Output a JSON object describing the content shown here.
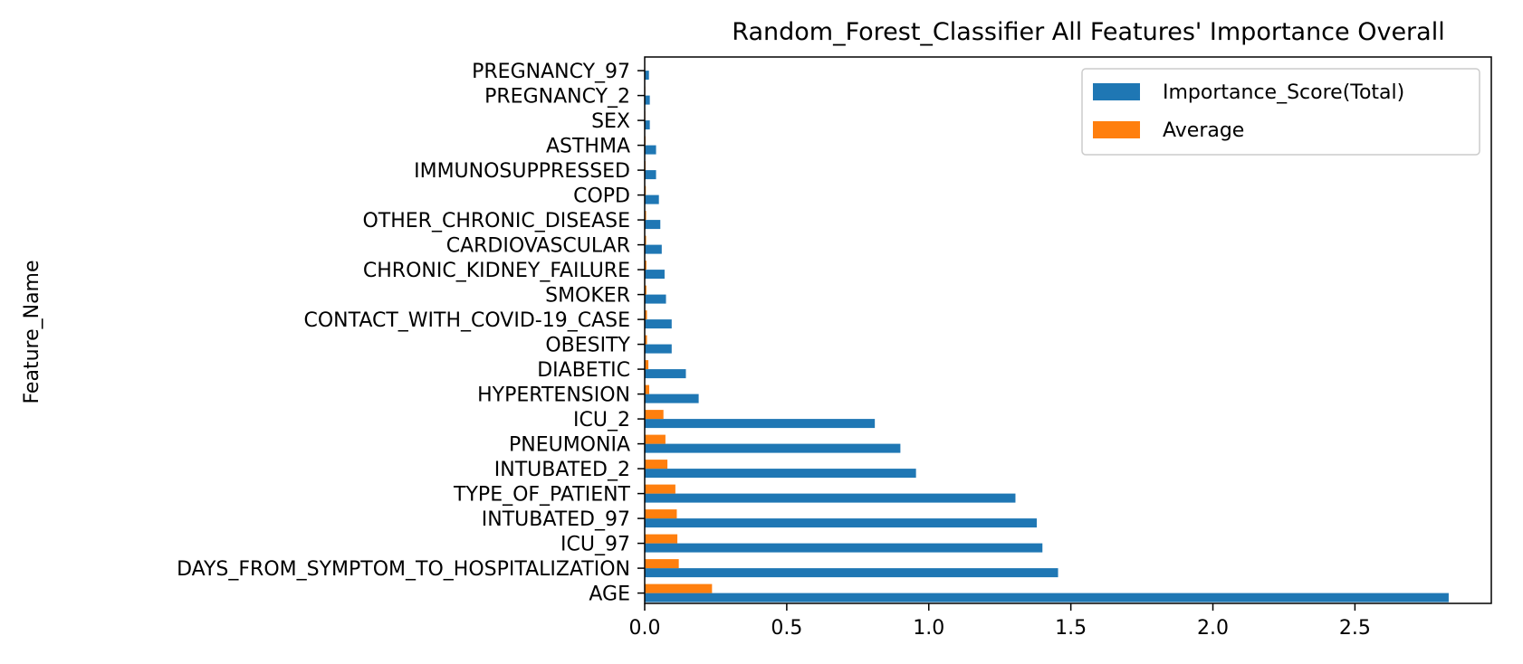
{
  "chart_data": {
    "type": "bar",
    "orientation": "horizontal",
    "title": "Random_Forest_Classifier All Features' Importance Overall",
    "xlabel": "",
    "ylabel": "Feature_Name",
    "xlim": [
      0,
      2.98
    ],
    "xticks": [
      "0.0",
      "0.5",
      "1.0",
      "1.5",
      "2.0",
      "2.5"
    ],
    "xtick_values": [
      0,
      0.5,
      1.0,
      1.5,
      2.0,
      2.5
    ],
    "grid": false,
    "legend_position": "top-right",
    "categories": [
      "AGE",
      "DAYS_FROM_SYMPTOM_TO_HOSPITALIZATION",
      "ICU_97",
      "INTUBATED_97",
      "TYPE_OF_PATIENT",
      "INTUBATED_2",
      "PNEUMONIA",
      "ICU_2",
      "HYPERTENSION",
      "DIABETIC",
      "OBESITY",
      "CONTACT_WITH_COVID-19_CASE",
      "SMOKER",
      "CHRONIC_KIDNEY_FAILURE",
      "CARDIOVASCULAR",
      "OTHER_CHRONIC_DISEASE",
      "COPD",
      "IMMUNOSUPPRESSED",
      "ASTHMA",
      "SEX",
      "PREGNANCY_2",
      "PREGNANCY_97"
    ],
    "series": [
      {
        "name": "Importance_Score(Total)",
        "color": "#1f77b4",
        "values": [
          2.83,
          1.455,
          1.4,
          1.38,
          1.305,
          0.955,
          0.9,
          0.81,
          0.19,
          0.145,
          0.095,
          0.095,
          0.075,
          0.07,
          0.06,
          0.055,
          0.05,
          0.04,
          0.04,
          0.018,
          0.018,
          0.015
        ]
      },
      {
        "name": "Average",
        "color": "#ff7f0e",
        "values": [
          0.237,
          0.12,
          0.115,
          0.113,
          0.108,
          0.08,
          0.073,
          0.066,
          0.016,
          0.013,
          0.008,
          0.008,
          0.006,
          0.006,
          0.005,
          0.005,
          0.004,
          0.003,
          0.003,
          0.002,
          0.002,
          0.001
        ]
      }
    ]
  }
}
